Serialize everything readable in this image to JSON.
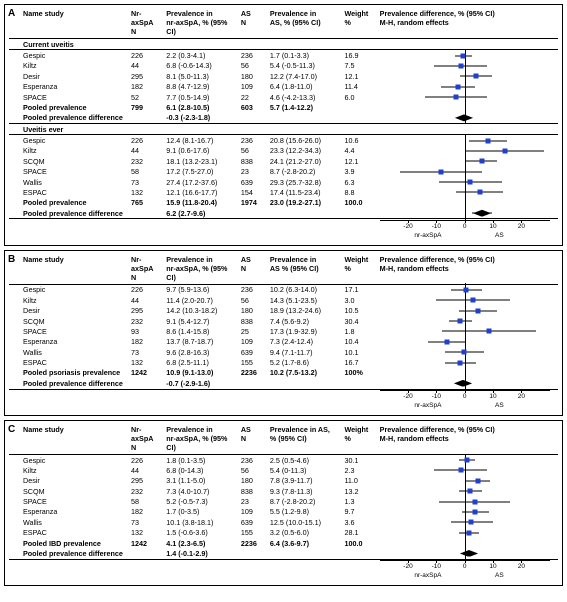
{
  "plot": {
    "domain_min": -30,
    "domain_max": 30,
    "ticks": [
      -20,
      -10,
      0,
      10,
      20
    ],
    "left_label": "nr-axSpA",
    "right_label": "AS",
    "marker_color": "#2040d0",
    "diamond_color": "#000000"
  },
  "panels": [
    {
      "id": "A",
      "headers": [
        "Name study",
        "Nr-axSpA\nN",
        "Prevalence in\nnr-axSpA, % (95% CI)",
        "AS\nN",
        "Prevalence in\nAS, % (95% CI)",
        "Weight\n%",
        "Prevalence difference, % (95% CI)\nM-H, random effects"
      ],
      "sections": [
        {
          "title": "Current uveitis",
          "rows": [
            {
              "study": "Gespic",
              "n1": "226",
              "p1": "2.2 (0.3-4.1)",
              "n2": "236",
              "p2": "1.7 (0.1-3.3)",
              "w": "16.9",
              "pt": -0.5,
              "lo": -3.5,
              "hi": 2.5
            },
            {
              "study": "Kiltz",
              "n1": "44",
              "p1": "6.8 (-0.6-14.3)",
              "n2": "56",
              "p2": "5.4 (-0.5-11.3)",
              "w": "7.5",
              "pt": -1.4,
              "lo": -11,
              "hi": 8
            },
            {
              "study": "Desir",
              "n1": "295",
              "p1": "8.1 (5.0-11.3)",
              "n2": "180",
              "p2": "12.2 (7.4-17.0)",
              "w": "12.1",
              "pt": 4.1,
              "lo": -1.5,
              "hi": 9.5
            },
            {
              "study": "Esperanza",
              "n1": "182",
              "p1": "8.8 (4.7-12.9)",
              "n2": "109",
              "p2": "6.4 (1.8-11.0)",
              "w": "11.4",
              "pt": -2.4,
              "lo": -8.5,
              "hi": 3.5
            },
            {
              "study": "SPACE",
              "n1": "52",
              "p1": "7.7 (0.5-14.9)",
              "n2": "22",
              "p2": "4.6 (-4.2-13.3)",
              "w": "6.0",
              "pt": -3.1,
              "lo": -14,
              "hi": 8
            }
          ],
          "pooled_prev": {
            "label": "Pooled prevalence",
            "n1": "799",
            "p1": "6.1 (2.8-10.5)",
            "n2": "603",
            "p2": "5.7 (1.4-12.2)"
          },
          "pooled_diff": {
            "label": "Pooled prevalence difference",
            "val": "-0.3 (-2.3-1.8)",
            "pt": -0.3,
            "lo": -2.3,
            "hi": 1.8
          }
        },
        {
          "title": "Uveitis ever",
          "rows": [
            {
              "study": "Gespic",
              "n1": "226",
              "p1": "12.4 (8.1-16.7)",
              "n2": "236",
              "p2": "20.8 (15.6-26.0)",
              "w": "10.6",
              "pt": 8.4,
              "lo": 1.5,
              "hi": 15
            },
            {
              "study": "Kiltz",
              "n1": "44",
              "p1": "9.1 (0.6-17.6)",
              "n2": "56",
              "p2": "23.3 (12.2-34.3)",
              "w": "4.4",
              "pt": 14.2,
              "lo": 0,
              "hi": 28
            },
            {
              "study": "SCQM",
              "n1": "232",
              "p1": "18.1 (13.2-23.1)",
              "n2": "838",
              "p2": "24.1 (21.2-27.0)",
              "w": "12.1",
              "pt": 6.0,
              "lo": 0.5,
              "hi": 11.5
            },
            {
              "study": "SPACE",
              "n1": "58",
              "p1": "17.2 (7.5-27.0)",
              "n2": "23",
              "p2": "8.7 (-2.8-20.2)",
              "w": "3.9",
              "pt": -8.5,
              "lo": -23,
              "hi": 6
            },
            {
              "study": "Wallis",
              "n1": "73",
              "p1": "27.4 (17.2-37.6)",
              "n2": "639",
              "p2": "29.3 (25.7-32.8)",
              "w": "6.3",
              "pt": 1.9,
              "lo": -9,
              "hi": 13
            },
            {
              "study": "ESPAC",
              "n1": "132",
              "p1": "12.1 (16.6-17.7)",
              "n2": "154",
              "p2": "17.4 (11.5-23.4)",
              "w": "8.8",
              "pt": 5.3,
              "lo": -3,
              "hi": 13.5
            }
          ],
          "pooled_prev": {
            "label": "Pooled prevalence",
            "n1": "765",
            "p1": "15.9 (11.8-20.4)",
            "n2": "1974",
            "p2": "23.0 (19.2-27.1)",
            "w": "100.0"
          },
          "pooled_diff": {
            "label": "Pooled prevalence difference",
            "val": "6.2 (2.7-9.6)",
            "pt": 6.2,
            "lo": 2.7,
            "hi": 9.6
          }
        }
      ]
    },
    {
      "id": "B",
      "headers": [
        "Name study",
        "Nr-axSpA\nN",
        "Prevalence in\nnr-axSpA, % (95% CI)",
        "AS\nN",
        "Prevalence in\nAS % (95% CI)",
        "Weight\n%",
        "Prevalence difference, % (95% CI)\nM-H, random effects"
      ],
      "sections": [
        {
          "title": "",
          "rows": [
            {
              "study": "Gespic",
              "n1": "226",
              "p1": "9.7 (5.9-13.6)",
              "n2": "236",
              "p2": "10.2 (6.3-14.0)",
              "w": "17.1",
              "pt": 0.5,
              "lo": -5,
              "hi": 6
            },
            {
              "study": "Kiltz",
              "n1": "44",
              "p1": "11.4 (2.0-20.7)",
              "n2": "56",
              "p2": "14.3 (5.1-23.5)",
              "w": "3.0",
              "pt": 2.9,
              "lo": -10,
              "hi": 16
            },
            {
              "study": "Desir",
              "n1": "295",
              "p1": "14.2 (10.3-18.2)",
              "n2": "180",
              "p2": "18.9 (13.2-24.6)",
              "w": "10.5",
              "pt": 4.7,
              "lo": -2,
              "hi": 11.5
            },
            {
              "study": "SCQM",
              "n1": "232",
              "p1": "9.1 (5.4-12.7)",
              "n2": "838",
              "p2": "7.4 (5.6-9.2)",
              "w": "30.4",
              "pt": -1.7,
              "lo": -5.5,
              "hi": 2.5
            },
            {
              "study": "SPACE",
              "n1": "93",
              "p1": "8.6 (1.4-15.8)",
              "n2": "25",
              "p2": "17.3 (1.9-32.9)",
              "w": "1.8",
              "pt": 8.7,
              "lo": -8,
              "hi": 25
            },
            {
              "study": "Esperanza",
              "n1": "182",
              "p1": "13.7 (8.7-18.7)",
              "n2": "109",
              "p2": "7.3 (2.4-12.4)",
              "w": "10.4",
              "pt": -6.4,
              "lo": -13,
              "hi": 0.5
            },
            {
              "study": "Wallis",
              "n1": "73",
              "p1": "9.6 (2.8-16.3)",
              "n2": "639",
              "p2": "9.4 (7.1-11.7)",
              "w": "10.1",
              "pt": -0.2,
              "lo": -7,
              "hi": 7
            },
            {
              "study": "ESPAC",
              "n1": "132",
              "p1": "6.8 (2.5-11.1)",
              "n2": "155",
              "p2": "5.2 (1.7-8.6)",
              "w": "16.7",
              "pt": -1.6,
              "lo": -7,
              "hi": 4
            }
          ],
          "pooled_prev": {
            "label": "Pooled psoriasis prevalence",
            "n1": "1242",
            "p1": "10.9 (9.1-13.0)",
            "n2": "2236",
            "p2": "10.2 (7.5-13.2)",
            "w": "100%"
          },
          "pooled_diff": {
            "label": "Pooled prevalence difference",
            "val": "-0.7 (-2.9-1.6)",
            "pt": -0.7,
            "lo": -2.9,
            "hi": 1.6
          }
        }
      ]
    },
    {
      "id": "C",
      "headers": [
        "Name study",
        "Nr-axSpA\nN",
        "Prevalence in\nnr-axSpA, % (95% CI)",
        "AS\nN",
        "Prevalence in AS,\n% (95% CI)",
        "Weight\n%",
        "Prevalence difference, % (95% CI)\nM-H, random effects"
      ],
      "sections": [
        {
          "title": "",
          "rows": [
            {
              "study": "Gespic",
              "n1": "226",
              "p1": "1.8 (0.1-3.5)",
              "n2": "236",
              "p2": "2.5 (0.5-4.6)",
              "w": "30.1",
              "pt": 0.7,
              "lo": -2,
              "hi": 3.5
            },
            {
              "study": "Kiltz",
              "n1": "44",
              "p1": "6.8 (0-14.3)",
              "n2": "56",
              "p2": "5.4 (0-11.3)",
              "w": "2.3",
              "pt": -1.4,
              "lo": -11,
              "hi": 8
            },
            {
              "study": "Desir",
              "n1": "295",
              "p1": "3.1 (1.1-5.0)",
              "n2": "180",
              "p2": "7.8 (3.9-11.7)",
              "w": "11.0",
              "pt": 4.7,
              "lo": 0.5,
              "hi": 9
            },
            {
              "study": "SCQM",
              "n1": "232",
              "p1": "7.3 (4.0-10.7)",
              "n2": "838",
              "p2": "9.3 (7.8-11.3)",
              "w": "13.2",
              "pt": 2.0,
              "lo": -2,
              "hi": 6
            },
            {
              "study": "SPACE",
              "n1": "58",
              "p1": "5.2 (-0.5-7.3)",
              "n2": "23",
              "p2": "8.7 (-2.8-20.2)",
              "w": "1.3",
              "pt": 3.5,
              "lo": -9,
              "hi": 16
            },
            {
              "study": "Esperanza",
              "n1": "182",
              "p1": "1.7 (0-3.5)",
              "n2": "109",
              "p2": "5.5 (1.2-9.8)",
              "w": "9.7",
              "pt": 3.8,
              "lo": -1,
              "hi": 8.5
            },
            {
              "study": "Wallis",
              "n1": "73",
              "p1": "10.1 (3.8-18.1)",
              "n2": "639",
              "p2": "12.5 (10.0-15.1)",
              "w": "3.6",
              "pt": 2.4,
              "lo": -5,
              "hi": 10
            },
            {
              "study": "ESPAC",
              "n1": "132",
              "p1": "1.5 (-0.6-3.6)",
              "n2": "155",
              "p2": "3.2 (0.5-6.0)",
              "w": "28.1",
              "pt": 1.7,
              "lo": -2,
              "hi": 5
            }
          ],
          "pooled_prev": {
            "label": "Pooled IBD prevalence",
            "n1": "1242",
            "p1": "4.1 (2.3-6.5)",
            "n2": "2236",
            "p2": "6.4 (3.6-9.7)",
            "w": "100.0"
          },
          "pooled_diff": {
            "label": "Pooled prevalence difference",
            "val": "1.4 (-0.1-2.9)",
            "pt": 1.4,
            "lo": -0.1,
            "hi": 2.9
          }
        }
      ]
    }
  ]
}
